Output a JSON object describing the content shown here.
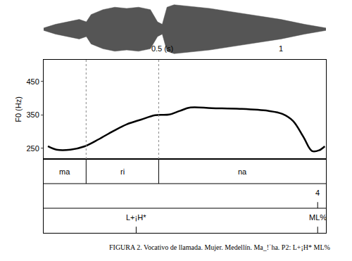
{
  "chart_data": [
    {
      "type": "area",
      "x": [
        0,
        0.05,
        0.1,
        0.15,
        0.18,
        0.2,
        0.25,
        0.3,
        0.35,
        0.4,
        0.45,
        0.48,
        0.5,
        0.52,
        0.55,
        0.6,
        0.7,
        0.8,
        0.9,
        1.0,
        1.1,
        1.19
      ],
      "values": [
        0.05,
        0.2,
        0.3,
        0.4,
        0.3,
        0.6,
        0.8,
        0.9,
        0.85,
        0.9,
        0.8,
        0.3,
        0.2,
        0.9,
        1.0,
        0.95,
        0.85,
        0.7,
        0.55,
        0.4,
        0.2,
        0.05
      ],
      "xlim": [
        0,
        1.19
      ],
      "xticks": [
        {
          "value": 0.5,
          "label": "0.5 (s)"
        },
        1
      ],
      "tick_labels": "x",
      "color": "#555555"
    },
    {
      "type": "line",
      "y_label": "F0 (Hz)",
      "x": [
        0.018,
        0.054,
        0.113,
        0.173,
        0.232,
        0.292,
        0.351,
        0.411,
        0.47,
        0.53,
        0.574,
        0.619,
        0.708,
        0.827,
        0.946,
        1.006,
        1.051,
        1.095,
        1.131,
        1.161,
        1.185
      ],
      "values": [
        256,
        246,
        246,
        256,
        277,
        301,
        322,
        336,
        349,
        351,
        362,
        372,
        370,
        368,
        362,
        353,
        332,
        284,
        242,
        244,
        256
      ],
      "xlim": [
        0,
        1.19
      ],
      "ylim": [
        218,
        515
      ],
      "yticks": [
        250,
        350,
        450
      ],
      "tick_labels": "y",
      "grid": false,
      "color": "#000000",
      "tiers": [
        {
          "intervals": [
            {
              "start": 0,
              "end": 0.179,
              "label": "ma"
            },
            {
              "start": 0.179,
              "end": 0.485,
              "label": "ri"
            },
            {
              "start": 0.485,
              "end": 1.19,
              "label": "na"
            }
          ]
        },
        {
          "points": [
            {
              "time": 1.155,
              "label": "4"
            }
          ]
        },
        {
          "points": [
            {
              "time": 0.39,
              "label": "L+¡H*"
            },
            {
              "time": 1.155,
              "label": "ML%"
            }
          ]
        }
      ],
      "caption": "FIGURA 2. Vocativo de llamada. Mujer. Medellín. Ma_!ˈha. P2: L+¡H* ML%"
    }
  ]
}
